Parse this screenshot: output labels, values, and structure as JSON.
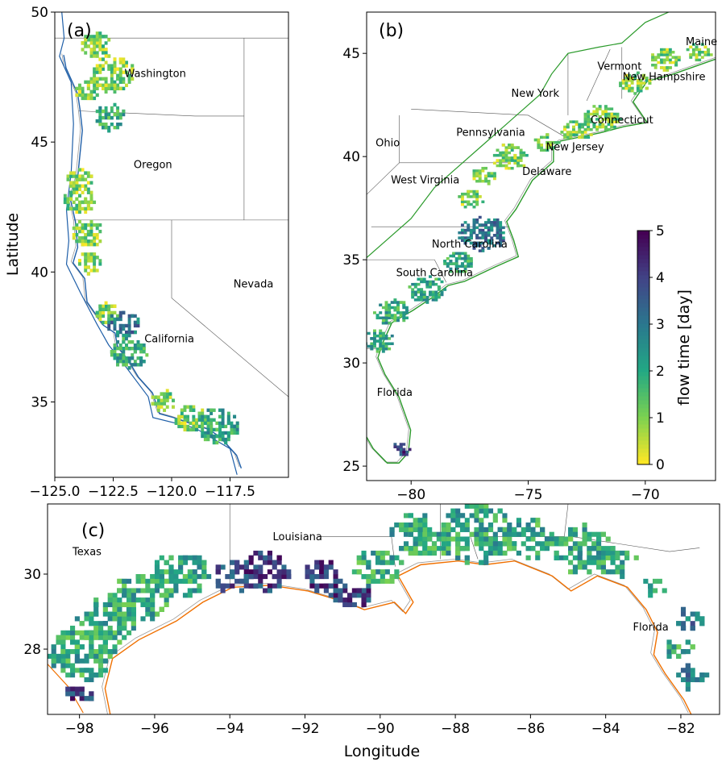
{
  "figure": {
    "xlabel": "Longitude",
    "ylabel": "Latitude",
    "colorbar": {
      "label": "flow time [day]",
      "ticks": [
        "0",
        "1",
        "2",
        "3",
        "4",
        "5"
      ],
      "range": [
        0,
        5
      ],
      "colormap": "viridis_r"
    }
  },
  "panels": [
    {
      "id": "a",
      "label": "(a)",
      "xlim": [
        -125,
        -115
      ],
      "ylim": [
        32.1,
        50
      ],
      "xticks": [
        "−125.0",
        "−122.5",
        "−120.0",
        "−117.5"
      ],
      "xtickvals": [
        -125,
        -122.5,
        -120,
        -117.5
      ],
      "yticks": [
        "35",
        "40",
        "45",
        "50"
      ],
      "ytickvals": [
        35,
        40,
        45,
        50
      ],
      "coast_color": "#1f5fa8",
      "states": [
        {
          "name": "Washington",
          "lon": -120.7,
          "lat": 47.5
        },
        {
          "name": "Oregon",
          "lon": -120.8,
          "lat": 44.0
        },
        {
          "name": "California",
          "lon": -120.1,
          "lat": 37.3
        },
        {
          "name": "Nevada",
          "lon": -116.5,
          "lat": 39.4
        }
      ],
      "clusters": [
        [
          -123.3,
          48.7,
          0.5,
          1
        ],
        [
          -122.6,
          47.6,
          0.7,
          1
        ],
        [
          -123.6,
          46.9,
          0.4,
          1
        ],
        [
          -122.7,
          45.9,
          0.5,
          2
        ],
        [
          -124.0,
          43.5,
          0.4,
          1
        ],
        [
          -124.0,
          42.7,
          0.5,
          1
        ],
        [
          -123.7,
          41.4,
          0.5,
          1
        ],
        [
          -123.6,
          40.3,
          0.4,
          1
        ],
        [
          -122.8,
          38.4,
          0.4,
          1
        ],
        [
          -122.1,
          37.9,
          0.5,
          3
        ],
        [
          -121.9,
          36.8,
          0.6,
          2
        ],
        [
          -120.4,
          35.0,
          0.4,
          1
        ],
        [
          -119.3,
          34.3,
          0.5,
          1
        ],
        [
          -118.1,
          34.0,
          0.7,
          2
        ]
      ]
    },
    {
      "id": "b",
      "label": "(b)",
      "xlim": [
        -81.9,
        -67
      ],
      "ylim": [
        24.3,
        47
      ],
      "xticks": [
        "−80",
        "−75",
        "−70"
      ],
      "xtickvals": [
        -80,
        -75,
        -70
      ],
      "yticks": [
        "25",
        "30",
        "35",
        "40",
        "45"
      ],
      "ytickvals": [
        25,
        30,
        35,
        40,
        45
      ],
      "coast_color": "#2a9a2a",
      "states": [
        {
          "name": "Maine",
          "lon": -67.6,
          "lat": 45.4
        },
        {
          "name": "Vermont",
          "lon": -71.1,
          "lat": 44.2
        },
        {
          "name": "New Hampshire",
          "lon": -69.2,
          "lat": 43.7
        },
        {
          "name": "New York",
          "lon": -74.7,
          "lat": 42.9
        },
        {
          "name": "Connecticut",
          "lon": -71.0,
          "lat": 41.6
        },
        {
          "name": "Pennsylvania",
          "lon": -76.6,
          "lat": 41.0
        },
        {
          "name": "Ohio",
          "lon": -81.0,
          "lat": 40.5
        },
        {
          "name": "New Jersey",
          "lon": -73.0,
          "lat": 40.3
        },
        {
          "name": "Delaware",
          "lon": -74.2,
          "lat": 39.1
        },
        {
          "name": "West Virginia",
          "lon": -79.4,
          "lat": 38.7
        },
        {
          "name": "North Carolina",
          "lon": -77.5,
          "lat": 35.6
        },
        {
          "name": "South Carolina",
          "lon": -79.0,
          "lat": 34.2
        },
        {
          "name": "Florida",
          "lon": -80.7,
          "lat": 28.4
        }
      ],
      "clusters": [
        [
          -67.8,
          45.0,
          0.4,
          1
        ],
        [
          -69.2,
          44.6,
          0.5,
          1
        ],
        [
          -70.5,
          43.5,
          0.5,
          1
        ],
        [
          -71.9,
          41.8,
          0.6,
          1
        ],
        [
          -73.0,
          41.2,
          0.5,
          1
        ],
        [
          -74.3,
          40.6,
          0.4,
          1
        ],
        [
          -75.9,
          39.9,
          0.6,
          1
        ],
        [
          -77.0,
          39.0,
          0.4,
          1
        ],
        [
          -77.5,
          37.9,
          0.4,
          1
        ],
        [
          -77.0,
          36.2,
          0.8,
          3
        ],
        [
          -78.0,
          34.8,
          0.5,
          2
        ],
        [
          -79.4,
          33.5,
          0.6,
          2
        ],
        [
          -80.9,
          32.4,
          0.6,
          2
        ],
        [
          -81.4,
          31.0,
          0.5,
          2
        ],
        [
          -80.4,
          25.8,
          0.3,
          4
        ]
      ]
    },
    {
      "id": "c",
      "label": "(c)",
      "xlim": [
        -98.85,
        -80.97
      ],
      "ylim": [
        26.26,
        31.87
      ],
      "xticks": [
        "−98",
        "−96",
        "−94",
        "−92",
        "−90",
        "−88",
        "−86",
        "−84",
        "−82"
      ],
      "xtickvals": [
        -98,
        -96,
        -94,
        -92,
        -90,
        -88,
        -86,
        -84,
        -82
      ],
      "yticks": [
        "28",
        "30"
      ],
      "ytickvals": [
        28,
        30
      ],
      "coast_color": "#f07000",
      "states": [
        {
          "name": "Texas",
          "lon": -97.8,
          "lat": 30.5
        },
        {
          "name": "Louisiana",
          "lon": -92.2,
          "lat": 30.9
        },
        {
          "name": "Florida",
          "lon": -82.8,
          "lat": 28.5
        }
      ],
      "clusters": [
        [
          -98.0,
          27.8,
          0.7,
          2
        ],
        [
          -98.0,
          26.8,
          0.3,
          4
        ],
        [
          -97.3,
          28.7,
          0.6,
          2
        ],
        [
          -96.5,
          29.3,
          0.6,
          2
        ],
        [
          -95.4,
          29.9,
          0.6,
          2
        ],
        [
          -94.0,
          29.9,
          0.4,
          4
        ],
        [
          -93.1,
          30.0,
          0.5,
          4
        ],
        [
          -91.6,
          29.9,
          0.4,
          4
        ],
        [
          -90.8,
          29.4,
          0.4,
          4
        ],
        [
          -90.1,
          30.1,
          0.5,
          2
        ],
        [
          -89.0,
          31.0,
          0.6,
          2
        ],
        [
          -87.5,
          31.0,
          0.8,
          2
        ],
        [
          -86.1,
          30.9,
          0.5,
          2
        ],
        [
          -84.7,
          30.6,
          0.6,
          2
        ],
        [
          -83.8,
          30.3,
          0.4,
          2
        ],
        [
          -82.8,
          29.6,
          0.2,
          2
        ],
        [
          -81.9,
          28.7,
          0.3,
          3
        ],
        [
          -82.1,
          28.0,
          0.3,
          2
        ],
        [
          -81.8,
          27.2,
          0.3,
          3
        ]
      ]
    }
  ]
}
